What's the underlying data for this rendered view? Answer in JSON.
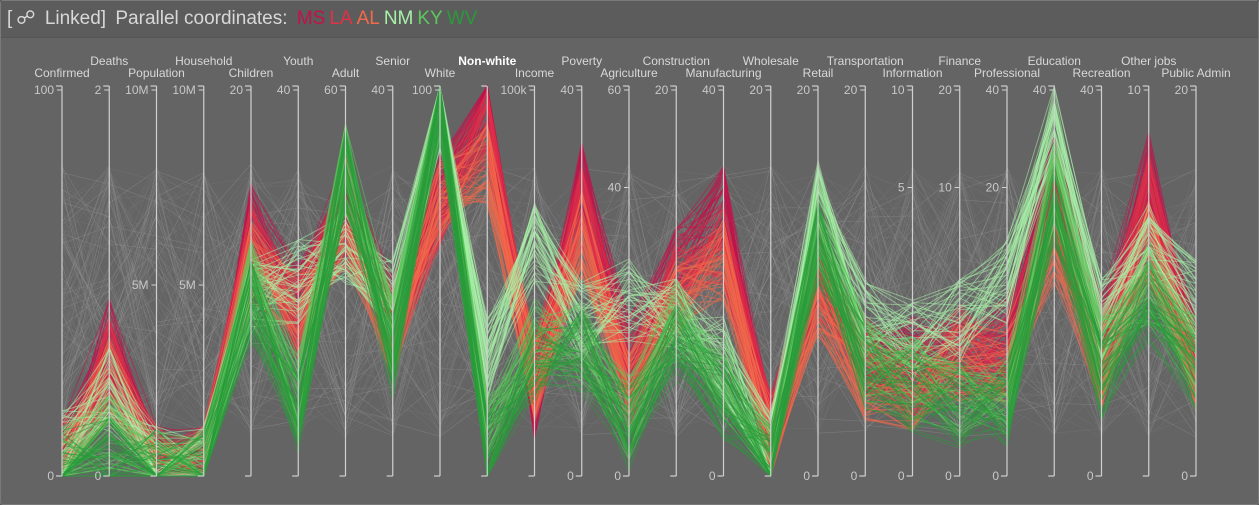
{
  "header": {
    "link_icon": "link-icon",
    "prefix": "[",
    "linked": "Linked]",
    "title": "Parallel coordinates:"
  },
  "states": [
    {
      "code": "MS",
      "color": "#c2124a"
    },
    {
      "code": "LA",
      "color": "#e23048"
    },
    {
      "code": "AL",
      "color": "#f26a4a"
    },
    {
      "code": "NM",
      "color": "#a8f0a8"
    },
    {
      "code": "KY",
      "color": "#5cc85c"
    },
    {
      "code": "WV",
      "color": "#2a9a3a"
    }
  ],
  "chart_data": {
    "type": "parallel_coordinates",
    "axes": [
      {
        "name": "Confirmed",
        "ticks": [
          "100",
          "0"
        ],
        "row": 2
      },
      {
        "name": "Deaths",
        "ticks": [
          "2",
          "0"
        ],
        "row": 1
      },
      {
        "name": "Population",
        "ticks": [
          "10M",
          "5M"
        ],
        "row": 2
      },
      {
        "name": "Household",
        "ticks": [
          "10M",
          "5M"
        ],
        "row": 1
      },
      {
        "name": "Children",
        "ticks": [
          "20"
        ],
        "row": 2
      },
      {
        "name": "Youth",
        "ticks": [
          "40"
        ],
        "row": 1
      },
      {
        "name": "Adult",
        "ticks": [
          "60"
        ],
        "row": 2
      },
      {
        "name": "Senior",
        "ticks": [
          "40"
        ],
        "row": 1
      },
      {
        "name": "White",
        "ticks": [
          "100"
        ],
        "row": 2
      },
      {
        "name": "Non-white",
        "ticks": [],
        "row": 1,
        "active": true
      },
      {
        "name": "Income",
        "ticks": [
          "100k"
        ],
        "row": 2
      },
      {
        "name": "Poverty",
        "ticks": [
          "40",
          "0"
        ],
        "row": 1
      },
      {
        "name": "Agriculture",
        "ticks": [
          "60",
          "40",
          "0"
        ],
        "row": 2
      },
      {
        "name": "Construction",
        "ticks": [
          "20"
        ],
        "row": 1
      },
      {
        "name": "Manufacturing",
        "ticks": [
          "40",
          "0"
        ],
        "row": 2
      },
      {
        "name": "Wholesale",
        "ticks": [
          "20"
        ],
        "row": 1
      },
      {
        "name": "Retail",
        "ticks": [
          "20",
          "0"
        ],
        "row": 2
      },
      {
        "name": "Transportation",
        "ticks": [
          "20",
          "0"
        ],
        "row": 1
      },
      {
        "name": "Information",
        "ticks": [
          "10",
          "5",
          "0"
        ],
        "row": 2
      },
      {
        "name": "Finance",
        "ticks": [
          "20",
          "10",
          "0"
        ],
        "row": 1
      },
      {
        "name": "Professional",
        "ticks": [
          "40",
          "20",
          "0"
        ],
        "row": 2
      },
      {
        "name": "Education",
        "ticks": [
          "40"
        ],
        "row": 1
      },
      {
        "name": "Recreation",
        "ticks": [
          "40",
          "0"
        ],
        "row": 2
      },
      {
        "name": "Other jobs",
        "ticks": [
          "10"
        ],
        "row": 1
      },
      {
        "name": "Public Admin",
        "ticks": [
          "20",
          "0"
        ],
        "row": 2
      }
    ],
    "profiles": [
      {
        "group": "MS",
        "color": "#c2124a",
        "values": [
          0.03,
          0.35,
          0.02,
          0.02,
          0.65,
          0.45,
          0.72,
          0.4,
          0.72,
          0.95,
          0.2,
          0.75,
          0.3,
          0.55,
          0.7,
          0.1,
          0.55,
          0.3,
          0.3,
          0.3,
          0.35,
          0.78,
          0.35,
          0.78,
          0.3
        ]
      },
      {
        "group": "LA",
        "color": "#e23048",
        "values": [
          0.04,
          0.3,
          0.02,
          0.02,
          0.6,
          0.4,
          0.68,
          0.38,
          0.7,
          0.9,
          0.25,
          0.7,
          0.25,
          0.5,
          0.6,
          0.1,
          0.5,
          0.3,
          0.25,
          0.35,
          0.3,
          0.7,
          0.3,
          0.72,
          0.28
        ]
      },
      {
        "group": "AL",
        "color": "#f26a4a",
        "values": [
          0.03,
          0.25,
          0.02,
          0.02,
          0.55,
          0.42,
          0.64,
          0.35,
          0.7,
          0.8,
          0.24,
          0.62,
          0.22,
          0.45,
          0.55,
          0.09,
          0.45,
          0.25,
          0.22,
          0.3,
          0.28,
          0.6,
          0.28,
          0.6,
          0.26
        ]
      },
      {
        "group": "NM",
        "color": "#a8f0a8",
        "values": [
          0.06,
          0.22,
          0.02,
          0.02,
          0.45,
          0.5,
          0.6,
          0.45,
          0.95,
          0.3,
          0.6,
          0.4,
          0.45,
          0.4,
          0.3,
          0.05,
          0.7,
          0.4,
          0.35,
          0.4,
          0.5,
          0.9,
          0.4,
          0.6,
          0.45
        ]
      },
      {
        "group": "KY",
        "color": "#5cc85c",
        "values": [
          0.02,
          0.1,
          0.01,
          0.01,
          0.5,
          0.2,
          0.8,
          0.35,
          0.98,
          0.1,
          0.35,
          0.35,
          0.15,
          0.4,
          0.25,
          0.02,
          0.65,
          0.3,
          0.25,
          0.2,
          0.2,
          0.75,
          0.3,
          0.5,
          0.3
        ]
      },
      {
        "group": "WV",
        "color": "#2a9a3a",
        "values": [
          0.01,
          0.05,
          0.01,
          0.01,
          0.45,
          0.15,
          0.78,
          0.3,
          0.96,
          0.05,
          0.3,
          0.32,
          0.12,
          0.35,
          0.2,
          0.02,
          0.6,
          0.28,
          0.22,
          0.18,
          0.18,
          0.7,
          0.25,
          0.45,
          0.28
        ]
      }
    ]
  }
}
